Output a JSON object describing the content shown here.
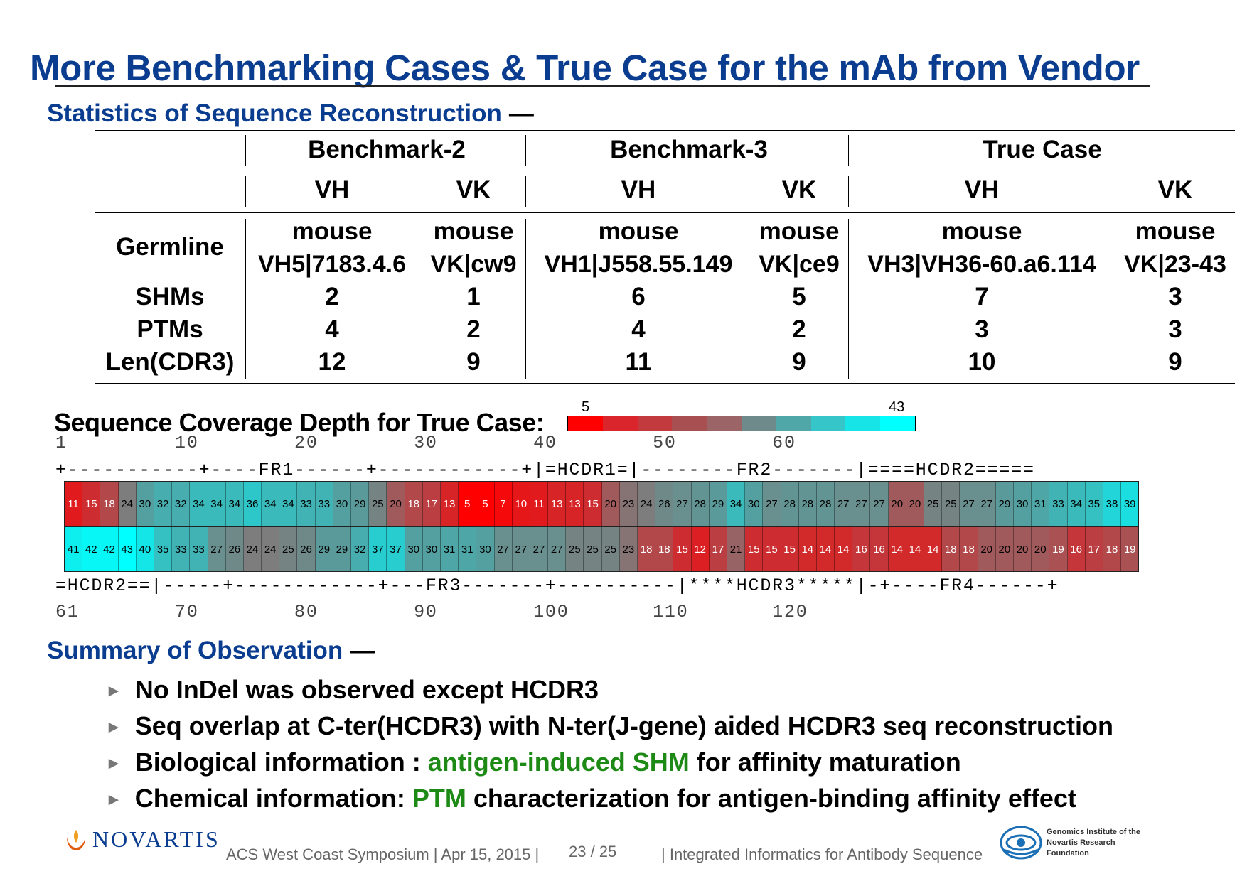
{
  "title": "More Benchmarking Cases & True Case for the mAb from Vendor",
  "stats_heading": "Statistics of Sequence Reconstruction",
  "summary_heading": "Summary of Observation",
  "heading_dash": "—",
  "table": {
    "groups": [
      "Benchmark-2",
      "Benchmark-3",
      "True Case"
    ],
    "subcols": [
      "VH",
      "VK",
      "VH",
      "VK",
      "VH",
      "VK"
    ],
    "germline_label": "Germline",
    "germline_species": [
      "mouse",
      "mouse",
      "mouse",
      "mouse",
      "mouse",
      "mouse"
    ],
    "germline_genes": [
      "VH5|7183.4.6",
      "VK|cw9",
      "VH1|J558.55.149",
      "VK|ce9",
      "VH3|VH36-60.a6.114",
      "VK|23-43"
    ],
    "rows": [
      {
        "label": "SHMs",
        "values": [
          "2",
          "1",
          "6",
          "5",
          "7",
          "3"
        ]
      },
      {
        "label": "PTMs",
        "values": [
          "4",
          "2",
          "4",
          "2",
          "3",
          "3"
        ]
      },
      {
        "label": "Len(CDR3)",
        "values": [
          "12",
          "9",
          "11",
          "9",
          "10",
          "9"
        ]
      }
    ]
  },
  "coverage": {
    "label": "Sequence Coverage Depth for True Case:",
    "legend_min": "5",
    "legend_max": "43",
    "legend_colors": [
      "#ff0000",
      "#d9252b",
      "#c23a3d",
      "#a84f52",
      "#9b6466",
      "#6f8a8b",
      "#4fa7a8",
      "#36c6c9",
      "#16e4e7",
      "#00ffff"
    ],
    "top_positions": "1         10        20        30        40        50        60",
    "top_regions": "+-----------+----FR1------+------------+|=HCDR1=|--------FR2-------|====HCDR2=====",
    "bottom_regions": "=HCDR2==|-----+------------+---FR3-------+----------|****HCDR3*****|-+----FR4------+",
    "bottom_positions": "61        70        80        90        100       110       120",
    "depth_row1": [
      11,
      15,
      18,
      24,
      30,
      32,
      32,
      34,
      34,
      34,
      36,
      34,
      34,
      33,
      33,
      30,
      29,
      25,
      20,
      18,
      17,
      13,
      5,
      5,
      7,
      10,
      11,
      13,
      13,
      15,
      20,
      23,
      24,
      26,
      27,
      28,
      29,
      34,
      30,
      27,
      28,
      28,
      28,
      27,
      27,
      27,
      20,
      20,
      25,
      25,
      27,
      27,
      29,
      30,
      31,
      33,
      34,
      35,
      38,
      39
    ],
    "depth_row2": [
      41,
      42,
      42,
      43,
      40,
      35,
      33,
      33,
      27,
      26,
      24,
      24,
      25,
      26,
      29,
      29,
      32,
      37,
      37,
      30,
      30,
      31,
      31,
      30,
      27,
      27,
      27,
      27,
      25,
      25,
      25,
      23,
      18,
      18,
      15,
      12,
      17,
      21,
      15,
      15,
      15,
      14,
      14,
      14,
      16,
      16,
      14,
      14,
      14,
      18,
      18,
      20,
      20,
      20,
      20,
      19,
      16,
      17,
      18,
      19
    ]
  },
  "summary": [
    {
      "parts": [
        {
          "text": "No InDel was observed except HCDR3",
          "hl": false
        }
      ]
    },
    {
      "parts": [
        {
          "text": "Seq overlap at C-ter(HCDR3) with N-ter(J-gene) aided HCDR3 seq reconstruction",
          "hl": false
        }
      ]
    },
    {
      "parts": [
        {
          "text": "Biological information : ",
          "hl": false
        },
        {
          "text": "antigen-induced SHM",
          "hl": true
        },
        {
          "text": " for affinity maturation",
          "hl": false
        }
      ]
    },
    {
      "parts": [
        {
          "text": "Chemical information: ",
          "hl": false
        },
        {
          "text": "PTM",
          "hl": true
        },
        {
          "text": " characterization for antigen-binding affinity effect",
          "hl": false
        }
      ]
    }
  ],
  "bullet_marker": "►",
  "footer": {
    "logo_text": "NOVARTIS",
    "event": "ACS West Coast Symposium | Apr 15, 2015 |",
    "page": "23 / 25",
    "talk": "| Integrated Informatics for Antibody Sequence",
    "gnf_lines": [
      "Genomics Institute of the",
      "Novartis Research",
      "Foundation"
    ]
  },
  "colors": {
    "heading_blue": "#0a3d8f",
    "highlight_green": "#1e8a16"
  }
}
